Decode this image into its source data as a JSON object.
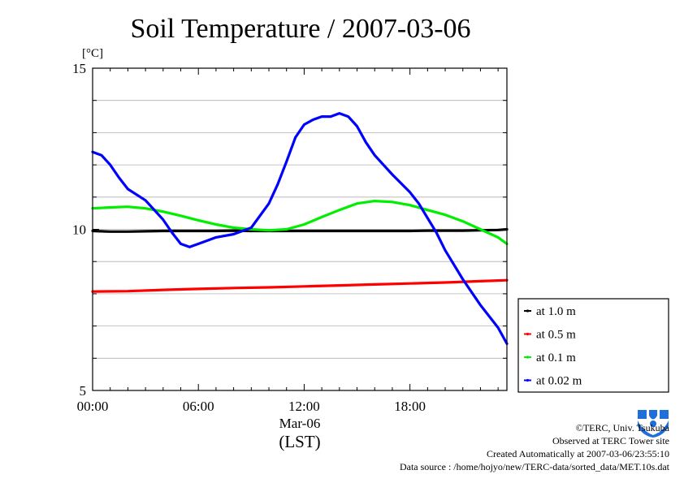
{
  "chart_data": {
    "type": "line",
    "title": "Soil Temperature / 2007-03-06",
    "ylabel": "[°C]",
    "ylim": [
      5,
      15
    ],
    "xlim_hours": [
      0,
      23.5
    ],
    "yticks": [
      "5",
      "10",
      "15"
    ],
    "xticks": [
      {
        "hour": 0,
        "label": "00:00"
      },
      {
        "hour": 6,
        "label": "06:00"
      },
      {
        "hour": 12,
        "label": "12:00"
      },
      {
        "hour": 18,
        "label": "18:00"
      }
    ],
    "xdate_label": "Mar-06",
    "xunit_label": "(LST)",
    "grid": true,
    "legend_position": "right",
    "series": [
      {
        "name": "at 1.0 m",
        "color": "#000000",
        "x": [
          0,
          1,
          2,
          3,
          4,
          5,
          6,
          7,
          8,
          9,
          10,
          11,
          12,
          13,
          14,
          15,
          16,
          17,
          18,
          19,
          20,
          21,
          22,
          23,
          23.5
        ],
        "y": [
          9.95,
          9.93,
          9.93,
          9.94,
          9.95,
          9.95,
          9.95,
          9.95,
          9.96,
          9.95,
          9.95,
          9.95,
          9.95,
          9.95,
          9.95,
          9.95,
          9.95,
          9.95,
          9.95,
          9.96,
          9.96,
          9.96,
          9.97,
          9.98,
          10.0
        ]
      },
      {
        "name": "at 0.5 m",
        "color": "#ff0000",
        "x": [
          0,
          2,
          4,
          6,
          8,
          10,
          12,
          14,
          16,
          18,
          20,
          22,
          23.5
        ],
        "y": [
          8.07,
          8.08,
          8.12,
          8.15,
          8.18,
          8.2,
          8.23,
          8.26,
          8.29,
          8.32,
          8.35,
          8.39,
          8.42
        ]
      },
      {
        "name": "at 0.1 m",
        "color": "#00ee00",
        "x": [
          0,
          1,
          2,
          3,
          4,
          5,
          6,
          7,
          8,
          9,
          10,
          11,
          12,
          13,
          14,
          15,
          16,
          17,
          18,
          19,
          20,
          21,
          22,
          23,
          23.5
        ],
        "y": [
          10.65,
          10.68,
          10.7,
          10.65,
          10.55,
          10.42,
          10.28,
          10.15,
          10.05,
          10.0,
          9.97,
          10.0,
          10.15,
          10.38,
          10.6,
          10.8,
          10.88,
          10.85,
          10.75,
          10.6,
          10.45,
          10.25,
          10.0,
          9.75,
          9.55
        ]
      },
      {
        "name": "at 0.02 m",
        "color": "#0000ff",
        "x": [
          0,
          0.5,
          1,
          1.5,
          2,
          3,
          4,
          4.5,
          5,
          5.5,
          6,
          7,
          8,
          9,
          10,
          10.5,
          11,
          11.5,
          12,
          12.5,
          13,
          13.5,
          14,
          14.5,
          15,
          15.5,
          16,
          17,
          18,
          18.5,
          19,
          19.5,
          20,
          21,
          22,
          23,
          23.5
        ],
        "y": [
          12.4,
          12.3,
          12.0,
          11.6,
          11.25,
          10.9,
          10.3,
          9.9,
          9.55,
          9.45,
          9.55,
          9.75,
          9.85,
          10.05,
          10.8,
          11.4,
          12.1,
          12.85,
          13.25,
          13.4,
          13.5,
          13.5,
          13.6,
          13.5,
          13.2,
          12.7,
          12.3,
          11.7,
          11.15,
          10.8,
          10.35,
          9.9,
          9.35,
          8.45,
          7.65,
          6.95,
          6.45
        ]
      }
    ]
  },
  "credits": {
    "copyright": "©TERC, Univ. Tsukuba",
    "site": "Observed at TERC Tower site",
    "created": "Created Automatically at 2007-03-06/23:55:10",
    "source": "Data source : /home/hojyo/new/TERC-data/sorted_data/MET.10s.dat"
  },
  "logo": {
    "name": "terc-logo",
    "text": "TERC",
    "color": "#1e6fd9"
  }
}
